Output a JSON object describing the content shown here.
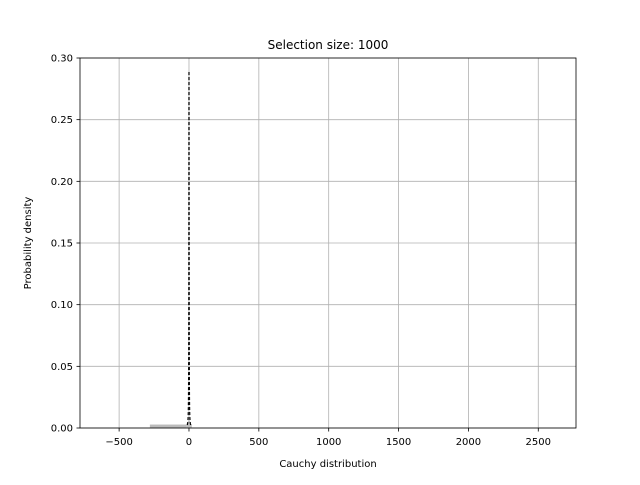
{
  "chart_data": {
    "type": "bar",
    "title": "Selection size: 1000",
    "xlabel": "Cauchy distribution",
    "ylabel": "Probability density",
    "xlim": [
      -780,
      2770
    ],
    "ylim": [
      0,
      0.3
    ],
    "grid": true,
    "xticks": [
      -500,
      0,
      500,
      1000,
      1500,
      2000,
      2500
    ],
    "xtick_labels": [
      "−500",
      "0",
      "500",
      "1000",
      "1500",
      "2000",
      "2500"
    ],
    "yticks": [
      0.0,
      0.05,
      0.1,
      0.15,
      0.2,
      0.25,
      0.3
    ],
    "ytick_labels": [
      "0.00",
      "0.05",
      "0.10",
      "0.15",
      "0.20",
      "0.25",
      "0.30"
    ],
    "histogram": {
      "color": "#bbbbbb",
      "bins": [
        {
          "x0": -280,
          "x1": -20,
          "density": 0.0028
        },
        {
          "x0": -20,
          "x1": -8,
          "density": 0.0035
        },
        {
          "x0": -8,
          "x1": -3,
          "density": 0.0055
        },
        {
          "x0": 3,
          "x1": 8,
          "density": 0.006
        },
        {
          "x0": 8,
          "x1": 20,
          "density": 0.0032
        }
      ]
    },
    "pdf_curve": {
      "color": "#000000",
      "style": "dashed",
      "location": 0,
      "scale": 1.1,
      "peak": 0.2894,
      "x_range": [
        -12,
        12
      ]
    }
  }
}
